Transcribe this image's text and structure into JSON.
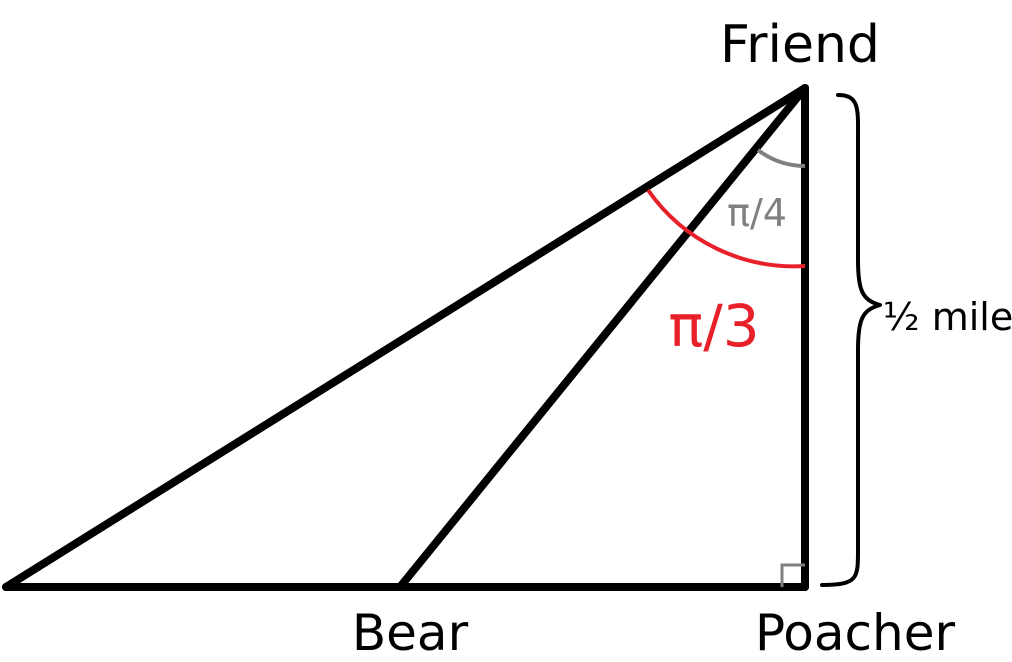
{
  "diagram": {
    "vertices": {
      "friend": "Friend",
      "bear": "Bear",
      "poacher": "Poacher"
    },
    "angles": {
      "small": "π/4",
      "large": "π/3"
    },
    "distance": "½ mile",
    "colors": {
      "line": "#000000",
      "angle_small": "#808080",
      "angle_large": "#e8202a",
      "right_angle": "#808080"
    }
  }
}
